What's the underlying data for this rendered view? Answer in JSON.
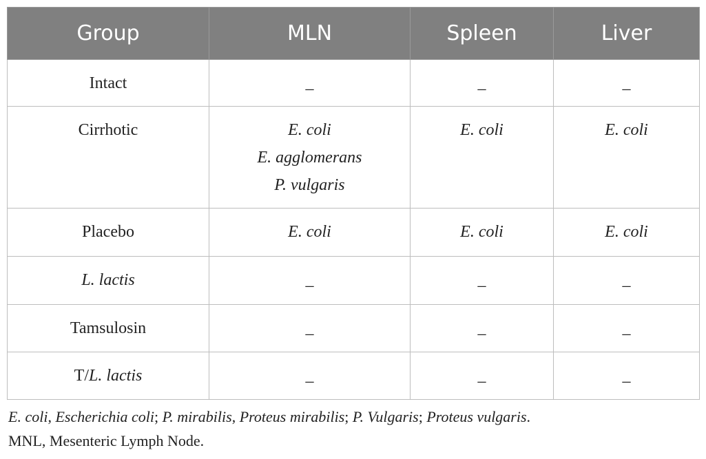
{
  "table": {
    "header": [
      "Group",
      "MLN",
      "Spleen",
      "Liver"
    ],
    "rows": [
      [
        [
          "Intact"
        ],
        [
          "_"
        ],
        [
          "_"
        ],
        [
          "_"
        ]
      ],
      [
        [
          "Cirrhotic"
        ],
        [
          "E. coli",
          "E. agglomerans",
          "P. vulgaris"
        ],
        [
          "E. coli"
        ],
        [
          "E. coli"
        ]
      ],
      [
        [
          "Placebo"
        ],
        [
          "E. coli"
        ],
        [
          "E. coli"
        ],
        [
          "E. coli"
        ]
      ],
      [
        [
          "L. lactis"
        ],
        [
          "_"
        ],
        [
          "_"
        ],
        [
          "_"
        ]
      ],
      [
        [
          "Tamsulosin"
        ],
        [
          "_"
        ],
        [
          "_"
        ],
        [
          "_"
        ]
      ],
      [
        [
          "T/",
          "L. lactis"
        ],
        [
          "_"
        ],
        [
          "_"
        ],
        [
          "_"
        ]
      ]
    ]
  },
  "footnote": {
    "lines": [
      [
        "E. coli",
        ", ",
        "Escherichia coli",
        "; ",
        "P. mirabilis",
        ", ",
        "Proteus mirabilis",
        "; ",
        "P. Vulgaris",
        "; ",
        "Proteus vulgaris",
        "."
      ],
      [
        "MNL, Mesenteric Lymph Node."
      ]
    ]
  }
}
